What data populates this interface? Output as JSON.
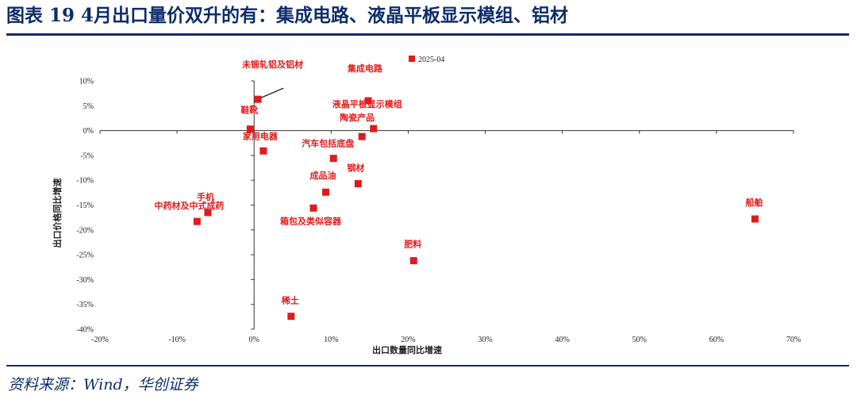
{
  "header": {
    "title": "图表 19   4月出口量价双升的有：集成电路、液晶平板显示模组、铝材"
  },
  "footer": {
    "source": "资料来源：Wind，华创证券"
  },
  "chart_data": {
    "type": "scatter",
    "series": [
      {
        "name": "2025-04",
        "color": "#e01b1b",
        "points": [
          {
            "label": "未锻轧铝及铝材",
            "x": 0.5,
            "y": 6.3
          },
          {
            "label": "集成电路",
            "x": 14.8,
            "y": 6.0
          },
          {
            "label": "鞋靴",
            "x": -0.5,
            "y": 0.3
          },
          {
            "label": "液晶平板显示模组",
            "x": 15.5,
            "y": 0.4
          },
          {
            "label": "陶瓷产品",
            "x": 14.0,
            "y": -1.2
          },
          {
            "label": "家用电器",
            "x": 1.2,
            "y": -4.1
          },
          {
            "label": "汽车包括底盘",
            "x": 10.3,
            "y": -5.6
          },
          {
            "label": "钢材",
            "x": 13.5,
            "y": -10.7
          },
          {
            "label": "成品油",
            "x": 9.3,
            "y": -12.4
          },
          {
            "label": "手机",
            "x": -6.0,
            "y": -16.5
          },
          {
            "label": "中药材及中式成药",
            "x": -7.4,
            "y": -18.3
          },
          {
            "label": "箱包及类似容器",
            "x": 7.7,
            "y": -15.6
          },
          {
            "label": "肥料",
            "x": 20.7,
            "y": -26.2
          },
          {
            "label": "稀土",
            "x": 4.8,
            "y": -37.4
          },
          {
            "label": "船舶",
            "x": 65.0,
            "y": -17.8
          }
        ]
      }
    ],
    "xlabel": "出口数量同比增速",
    "ylabel": "出口价格同比增速",
    "xlim": [
      -20,
      70
    ],
    "ylim": [
      -40,
      10
    ],
    "xticks": [
      -20,
      -10,
      0,
      10,
      20,
      30,
      40,
      50,
      60,
      70
    ],
    "yticks": [
      -40,
      -35,
      -30,
      -25,
      -20,
      -15,
      -10,
      -5,
      0,
      5,
      10
    ],
    "tick_format": "percent",
    "grid": false,
    "legend_position": "top-center"
  }
}
